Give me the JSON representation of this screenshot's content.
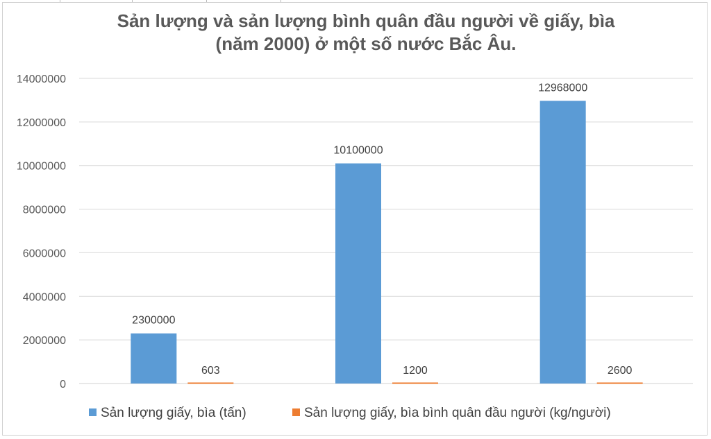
{
  "chart_data": {
    "type": "bar",
    "title": "Sản lượng và sản lượng bình quân đầu người về giấy, bìa (năm 2000) ở một số nước Bắc Âu.",
    "title_lines": [
      "Sản lượng và sản lượng bình quân đầu người về giấy, bìa",
      "(năm 2000) ở một số nước Bắc Âu."
    ],
    "categories": [
      "",
      "",
      ""
    ],
    "series": [
      {
        "name": "Sản lượng giấy, bìa (tấn)",
        "color": "#5b9bd5",
        "values": [
          2300000,
          10100000,
          12968000
        ],
        "labels": [
          "2300000",
          "10100000",
          "12968000"
        ]
      },
      {
        "name": "Sản lượng giấy, bìa bình quân đầu người (kg/người)",
        "color": "#ed7d31",
        "values": [
          603,
          1200,
          2600
        ],
        "labels": [
          "603",
          "1200",
          "2600"
        ]
      }
    ],
    "ylim": [
      0,
      14000000
    ],
    "yticks": [
      0,
      2000000,
      4000000,
      6000000,
      8000000,
      10000000,
      12000000,
      14000000
    ],
    "ytick_labels": [
      "0",
      "2000000",
      "4000000",
      "6000000",
      "8000000",
      "10000000",
      "12000000",
      "14000000"
    ],
    "grid": true,
    "legend_position": "bottom"
  }
}
